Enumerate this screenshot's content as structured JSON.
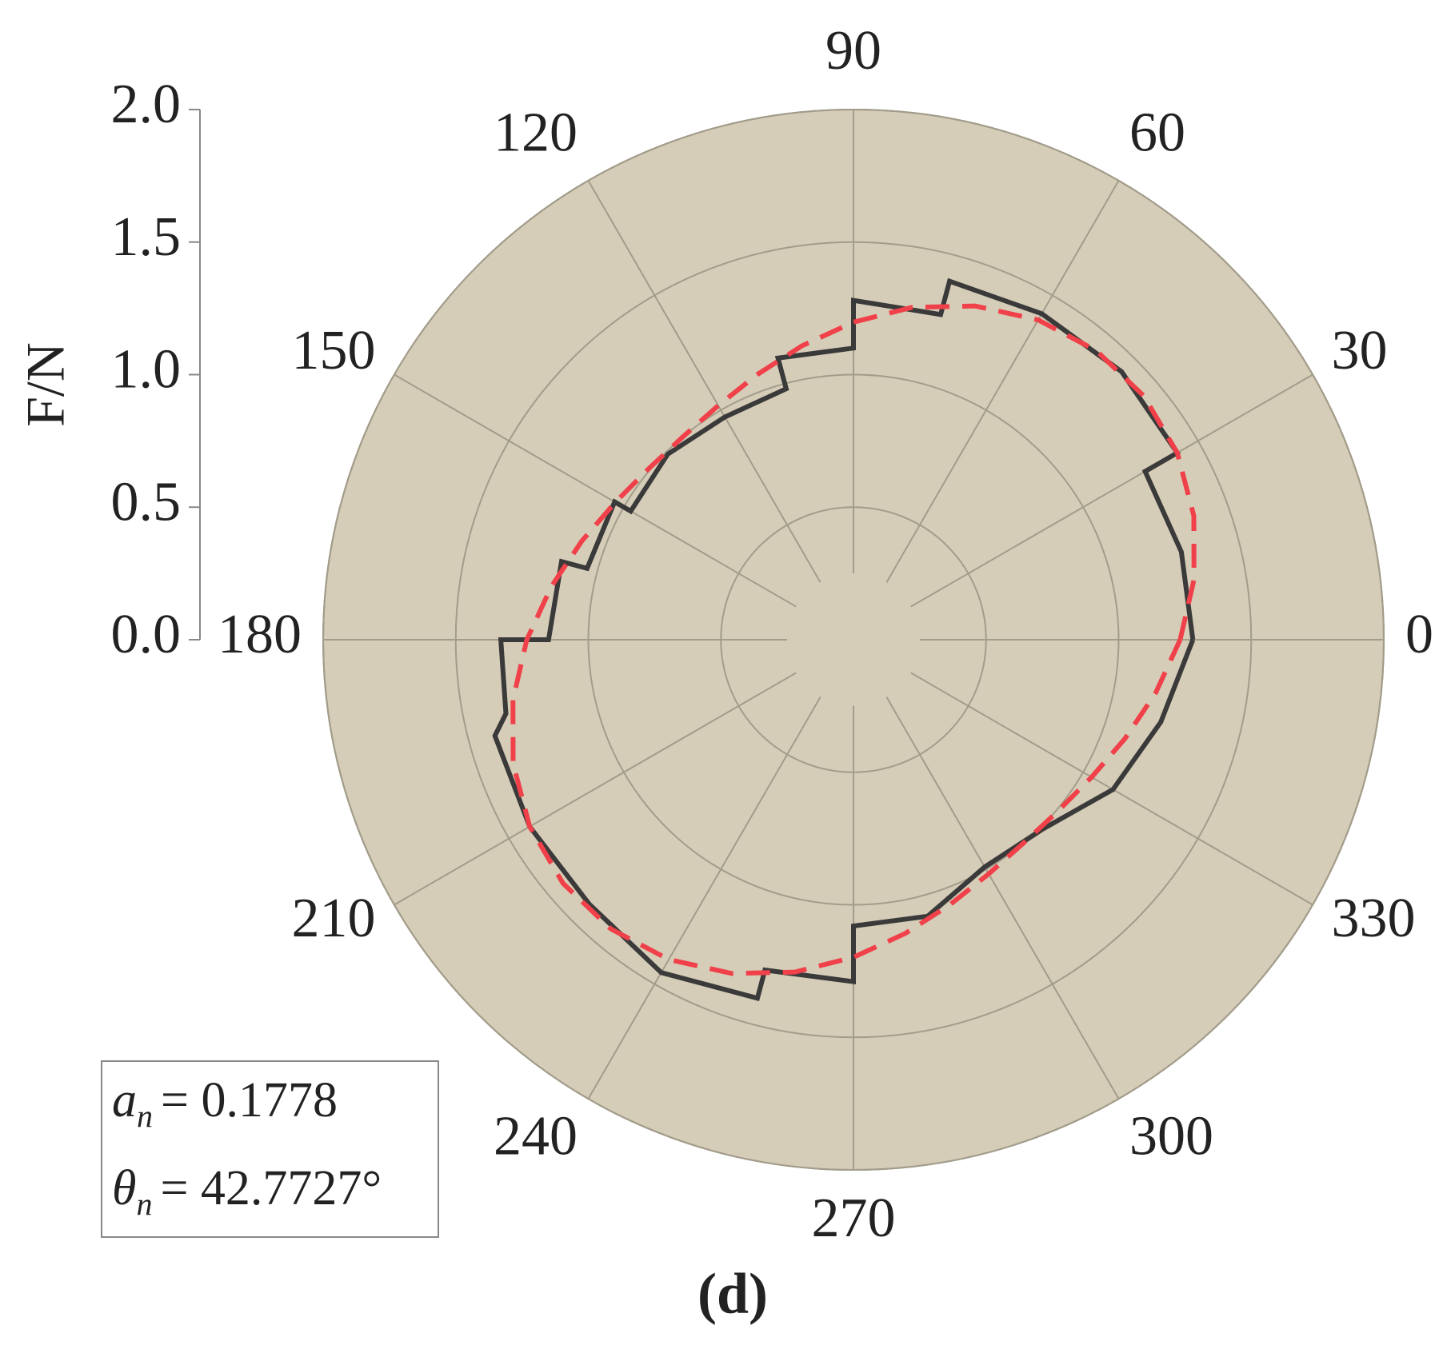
{
  "chart_data": {
    "type": "polar",
    "subtitle": "(d)",
    "y_label": "F/N",
    "rlim": [
      0,
      2
    ],
    "rticks": [
      {
        "value": 0,
        "label": "0.0"
      },
      {
        "value": 0.5,
        "label": "0.5"
      },
      {
        "value": 1,
        "label": "1.0"
      },
      {
        "value": 1.5,
        "label": "1.5"
      },
      {
        "value": 2,
        "label": "2.0"
      }
    ],
    "thetaticks": [
      0,
      30,
      60,
      90,
      120,
      150,
      180,
      210,
      240,
      270,
      300,
      330
    ],
    "grid": true,
    "background": "#d6cdb8",
    "series": [
      {
        "color": "#3a3a3a",
        "style": "solid",
        "theta": [
          0,
          15,
          30,
          30,
          45,
          60,
          75,
          75,
          90,
          90,
          105,
          105,
          120,
          135,
          150,
          150,
          165,
          165,
          180,
          180,
          192,
          195,
          210,
          225,
          240,
          255,
          255,
          270,
          270,
          285,
          300,
          315,
          330,
          345,
          360
        ],
        "values": [
          1.28,
          1.28,
          1.27,
          1.41,
          1.43,
          1.42,
          1.4,
          1.27,
          1.28,
          1.1,
          1.1,
          0.98,
          0.97,
          0.99,
          0.97,
          1.04,
          1.04,
          1.14,
          1.15,
          1.33,
          1.34,
          1.4,
          1.41,
          1.41,
          1.45,
          1.4,
          1.29,
          1.29,
          1.08,
          1.08,
          0.99,
          1.01,
          1.13,
          1.2,
          1.28
        ]
      },
      {
        "color": "#f0414a",
        "style": "dashed",
        "theta": [
          0,
          10,
          20,
          30,
          40,
          50,
          60,
          70,
          80,
          90,
          100,
          110,
          120,
          130,
          140,
          150,
          160,
          170,
          180,
          190,
          200,
          210,
          220,
          230,
          240,
          250,
          260,
          270,
          280,
          290,
          300,
          310,
          320,
          330,
          340,
          350,
          360
        ],
        "values": [
          1.232,
          1.304,
          1.366,
          1.41,
          1.43,
          1.424,
          1.393,
          1.34,
          1.273,
          1.198,
          1.125,
          1.064,
          1.02,
          1.0,
          1.006,
          1.037,
          1.09,
          1.157,
          1.232,
          1.304,
          1.366,
          1.41,
          1.43,
          1.424,
          1.393,
          1.34,
          1.273,
          1.198,
          1.125,
          1.064,
          1.02,
          1.0,
          1.006,
          1.037,
          1.09,
          1.157,
          1.232
        ]
      }
    ],
    "annotation": [
      {
        "symbol": "a",
        "sub": "n",
        "text": "= 0.1778"
      },
      {
        "symbol": "θ",
        "sub": "n",
        "text": "= 42.7727°"
      }
    ]
  }
}
